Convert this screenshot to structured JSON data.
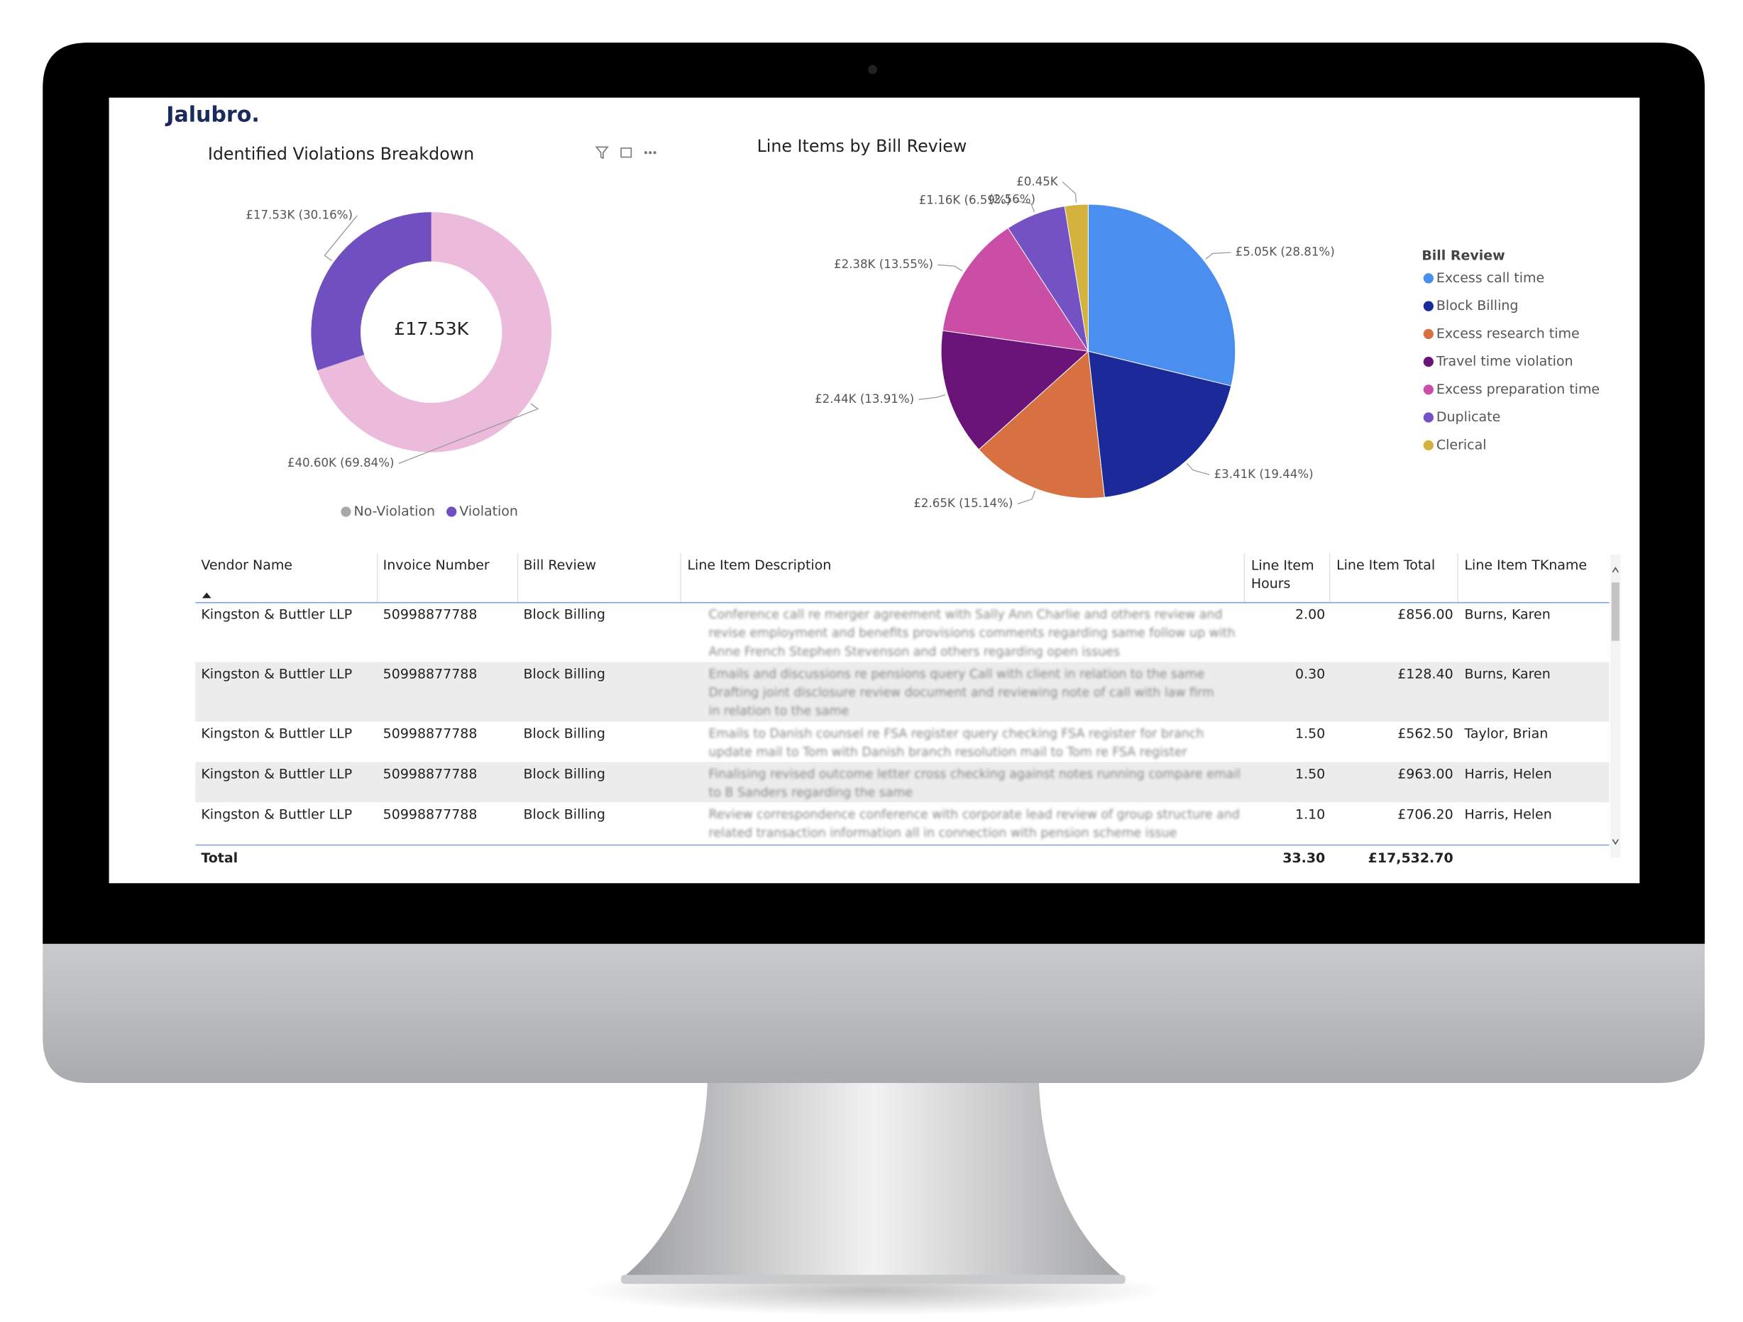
{
  "header": {
    "logo": "Jalubro."
  },
  "chart_data": [
    {
      "type": "donut",
      "title": "Identified Violations Breakdown",
      "center_label": "£17.53K",
      "categories": [
        "No-Violation",
        "Violation"
      ],
      "values": [
        40.6,
        17.53
      ],
      "value_labels": [
        "£40.60K (69.84%)",
        "£17.53K (30.16%)"
      ],
      "colors": [
        "#ecbadb",
        "#7050c0"
      ],
      "legend_colors": [
        "#a8a8a8",
        "#7050c0"
      ]
    },
    {
      "type": "pie",
      "title": "Line Items by Bill Review",
      "legend_title": "Bill Review",
      "categories": [
        "Excess call time",
        "Block Billing",
        "Excess research time",
        "Travel time violation",
        "Excess preparation time",
        "Duplicate",
        "Clerical"
      ],
      "values": [
        5.05,
        3.41,
        2.65,
        2.44,
        2.38,
        1.16,
        0.45
      ],
      "value_labels": [
        "£5.05K (28.81%)",
        "£3.41K (19.44%)",
        "£2.65K (15.14%)",
        "£2.44K (13.91%)",
        "£2.38K (13.55%)",
        "£1.16K (6.59%)",
        "£0.45K (2.56%)"
      ],
      "colors": [
        "#4a8ef0",
        "#1c2a99",
        "#d87142",
        "#6a1378",
        "#ca4ea6",
        "#7452c4",
        "#d4b23e"
      ]
    }
  ],
  "table": {
    "columns": [
      "Vendor Name",
      "Invoice Number",
      "Bill Review",
      "Line Item Description",
      "Line Item Hours",
      "Line Item Total",
      "Line Item TKname"
    ],
    "rows": [
      [
        "Kingston & Buttler LLP",
        "50998877788",
        "Block Billing",
        "Conference call re merger agreement with Sally Ann Charlie and others review and revise employment and benefits provisions comments regarding same follow up with Anne French Stephen Stevenson and others regarding open issues",
        "2.00",
        "£856.00",
        "Burns, Karen"
      ],
      [
        "Kingston & Buttler LLP",
        "50998877788",
        "Block Billing",
        "Emails and discussions re pensions query Call with client in relation to the same Drafting joint disclosure review document and reviewing note of call with law firm in relation to the same",
        "0.30",
        "£128.40",
        "Burns, Karen"
      ],
      [
        "Kingston & Buttler LLP",
        "50998877788",
        "Block Billing",
        "Emails to Danish counsel re FSA register query checking FSA register for branch update mail to Tom with Danish branch resolution mail to Tom re FSA register",
        "1.50",
        "£562.50",
        "Taylor, Brian"
      ],
      [
        "Kingston & Buttler LLP",
        "50998877788",
        "Block Billing",
        "Finalising revised outcome letter cross checking against notes running compare email to B Sanders regarding the same",
        "1.50",
        "£963.00",
        "Harris, Helen"
      ],
      [
        "Kingston & Buttler LLP",
        "50998877788",
        "Block Billing",
        "Review correspondence conference with corporate lead review of group structure and related transaction information all in connection with pension scheme issue",
        "1.10",
        "£706.20",
        "Harris, Helen"
      ]
    ],
    "total": {
      "label": "Total",
      "hours": "33.30",
      "amount": "£17,532.70"
    }
  }
}
